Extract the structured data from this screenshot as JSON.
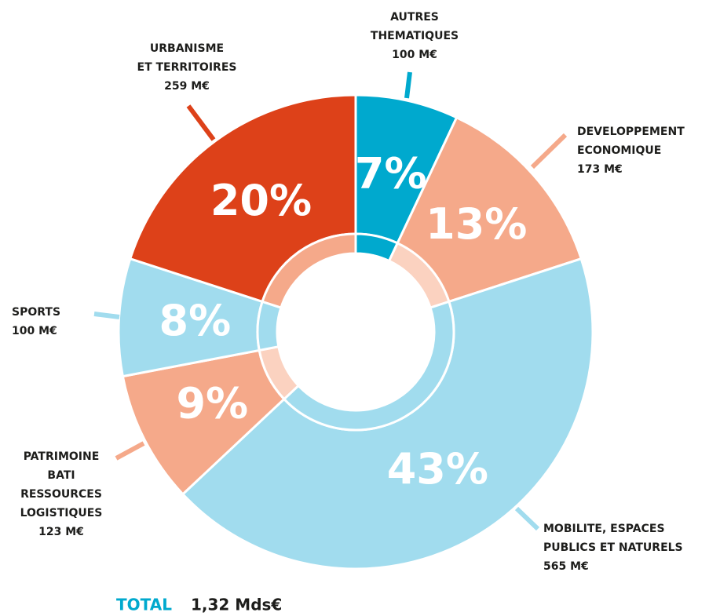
{
  "chart_data": {
    "type": "donut",
    "categories": [
      [
        "AUTRES",
        "THEMATIQUES"
      ],
      [
        "DEVELOPPEMENT",
        "ECONOMIQUE"
      ],
      [
        "MOBILITE, ESPACES",
        "PUBLICS ET NATURELS"
      ],
      [
        "PATRIMOINE",
        "BATI",
        "RESSOURCES",
        "LOGISTIQUES"
      ],
      [
        "SPORTS"
      ],
      [
        "URBANISME",
        "ET TERRITOIRES"
      ]
    ],
    "values": [
      7,
      13,
      43,
      9,
      8,
      20
    ],
    "value_labels": [
      "7%",
      "13%",
      "43%",
      "9%",
      "8%",
      "20%"
    ],
    "amounts": [
      100,
      173,
      565,
      123,
      100,
      259
    ],
    "amount_labels": [
      "100 M€",
      "173 M€",
      "565 M€",
      "123 M€",
      "100 M€",
      "259 M€"
    ],
    "colors": [
      "#00a9ce",
      "#f5a98a",
      "#a1dcee",
      "#f5a98a",
      "#a1dcee",
      "#dd4119"
    ],
    "inner_colors": [
      "#00a9ce",
      "#fbd2c0",
      "#a1dcee",
      "#fbd2c0",
      "#a1dcee",
      "#f5a98a"
    ],
    "total_label": "TOTAL",
    "total": "1,32 Mds€"
  }
}
